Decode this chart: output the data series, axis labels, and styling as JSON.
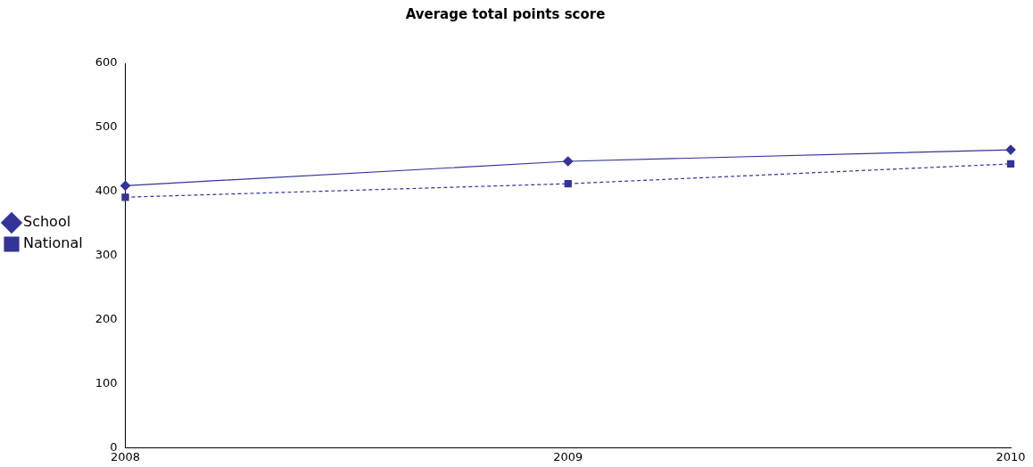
{
  "chart_data": {
    "type": "line",
    "title": "Average total points score",
    "categories": [
      "2008",
      "2009",
      "2010"
    ],
    "series": [
      {
        "name": "School",
        "color": "#333399",
        "values": [
          409,
          447,
          465
        ],
        "marker": "diamond",
        "line_style": "solid"
      },
      {
        "name": "National",
        "color": "#333399",
        "values": [
          391,
          412,
          443
        ],
        "marker": "square",
        "line_style": "dashed"
      }
    ],
    "ylim": [
      0,
      600
    ],
    "yticks": [
      0,
      100,
      200,
      300,
      400,
      500,
      600
    ],
    "grid": false,
    "legend": "left"
  }
}
